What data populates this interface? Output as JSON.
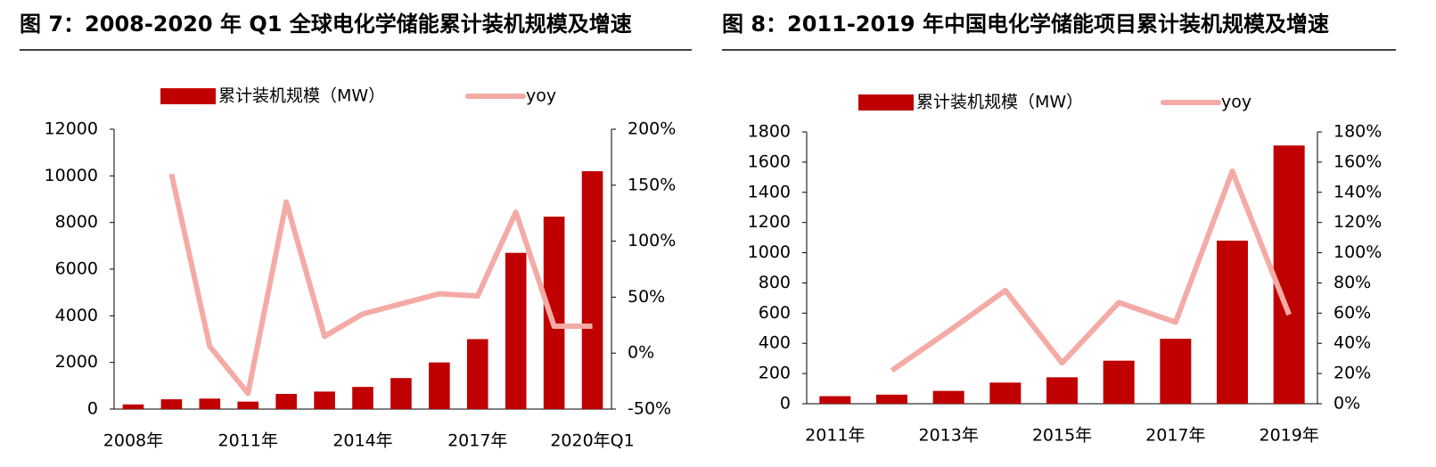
{
  "chart_data": [
    {
      "type": "bar",
      "title": "图 7：2008-2020 年 Q1 全球电化学储能累计装机规模及增速",
      "categories": [
        "2008年",
        null,
        null,
        "2011年",
        null,
        null,
        "2014年",
        null,
        null,
        "2017年",
        null,
        null,
        "2020年Q1"
      ],
      "series": [
        {
          "name": "累计装机规模（MW）",
          "type": "bar",
          "color": "#c00000",
          "values": [
            200,
            420,
            450,
            320,
            650,
            750,
            950,
            1330,
            2000,
            3000,
            6700,
            8250,
            10200
          ]
        },
        {
          "name": "yoy",
          "type": "line",
          "axis": "y2",
          "color": "#f4aaa5",
          "values": [
            null,
            160,
            6,
            -36,
            135,
            15,
            35,
            44,
            53,
            51,
            126,
            24,
            24
          ]
        }
      ],
      "ylim": [
        0,
        12000
      ],
      "yticks": [
        0,
        2000,
        4000,
        6000,
        8000,
        10000,
        12000
      ],
      "y2lim": [
        -50,
        200
      ],
      "y2ticks": [
        {
          "value": -50,
          "label": "-50%"
        },
        {
          "value": 0,
          "label": "0%"
        },
        {
          "value": 50,
          "label": "50%"
        },
        {
          "value": 100,
          "label": "100%"
        },
        {
          "value": 150,
          "label": "150%"
        },
        {
          "value": 200,
          "label": "200%"
        }
      ],
      "legend": "top"
    },
    {
      "type": "bar",
      "title": "图 8：2011-2019 年中国电化学储能项目累计装机规模及增速",
      "categories": [
        "2011年",
        null,
        "2013年",
        null,
        "2015年",
        null,
        "2017年",
        null,
        "2019年"
      ],
      "series": [
        {
          "name": "累计装机规模（MW）",
          "type": "bar",
          "color": "#c00000",
          "values": [
            50,
            60,
            85,
            140,
            175,
            285,
            430,
            1080,
            1710
          ]
        },
        {
          "name": "yoy",
          "type": "line",
          "axis": "y2",
          "color": "#f4aaa5",
          "values": [
            null,
            22,
            48,
            75,
            27,
            67,
            54,
            154,
            59
          ]
        }
      ],
      "ylim": [
        0,
        1800
      ],
      "yticks": [
        0,
        200,
        400,
        600,
        800,
        1000,
        1200,
        1400,
        1600,
        1800
      ],
      "y2lim": [
        0,
        180
      ],
      "y2ticks": [
        {
          "value": 0,
          "label": "0%"
        },
        {
          "value": 20,
          "label": "20%"
        },
        {
          "value": 40,
          "label": "40%"
        },
        {
          "value": 60,
          "label": "60%"
        },
        {
          "value": 80,
          "label": "80%"
        },
        {
          "value": 100,
          "label": "100%"
        },
        {
          "value": 120,
          "label": "120%"
        },
        {
          "value": 140,
          "label": "140%"
        },
        {
          "value": 160,
          "label": "160%"
        },
        {
          "value": 180,
          "label": "180%"
        }
      ],
      "legend": "top"
    }
  ]
}
